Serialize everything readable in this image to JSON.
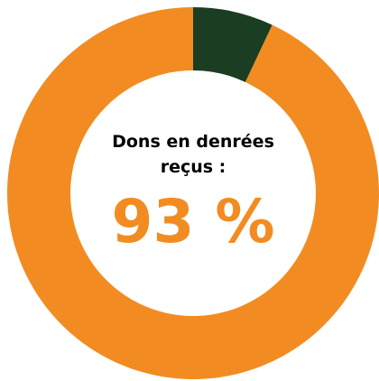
{
  "chart_data": {
    "type": "donut",
    "title": "Dons en denrées reçus :",
    "categories": [
      null,
      null
    ],
    "values": [
      93,
      7
    ],
    "value_labels": [
      "93 %",
      null
    ],
    "colors": [
      "#f28c22",
      "#1b3d22"
    ],
    "start": "top",
    "direction": "clockwise"
  }
}
